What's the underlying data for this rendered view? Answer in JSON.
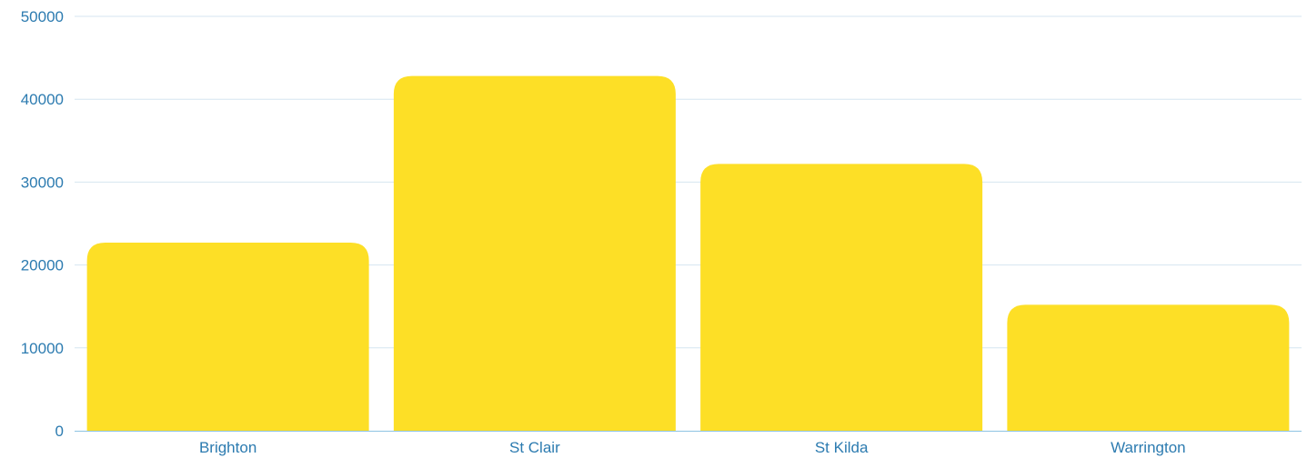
{
  "chart_data": {
    "type": "bar",
    "title": "",
    "xlabel": "",
    "ylabel": "",
    "categories": [
      "Brighton",
      "St Clair",
      "St Kilda",
      "Warrington"
    ],
    "values": [
      22700,
      42800,
      32200,
      15200
    ],
    "ylim": [
      0,
      50000
    ],
    "yticks": [
      0,
      10000,
      20000,
      30000,
      40000,
      50000
    ],
    "ytick_labels": [
      "0",
      "10000",
      "20000",
      "30000",
      "40000",
      "50000"
    ],
    "grid": true,
    "legend": "none",
    "colors": {
      "bar": "#fddf26",
      "grid": "#d6e6f0",
      "axis": "#8ec3e3",
      "label": "#2c7bb0"
    }
  }
}
